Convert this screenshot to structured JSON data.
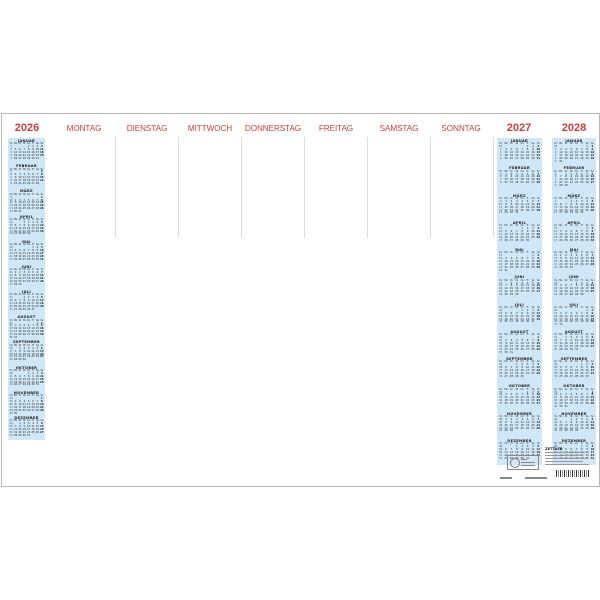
{
  "years": {
    "left": "2026",
    "right1": "2027",
    "right2": "2028"
  },
  "weekdays": [
    "MONTAG",
    "DIENSTAG",
    "MITTWOCH",
    "DONNERSTAG",
    "FREITAG",
    "SAMSTAG",
    "SONNTAG"
  ],
  "months": [
    "JANUAR",
    "FEBRUAR",
    "MÄRZ",
    "APRIL",
    "MAI",
    "JUNI",
    "JULI",
    "AUGUST",
    "SEPTEMBER",
    "OKTOBER",
    "NOVEMBER",
    "DEZEMBER"
  ],
  "mini_weekday_header": [
    "Wo",
    "Mo",
    "Di",
    "Mi",
    "Do",
    "Fr",
    "Sa",
    "So"
  ],
  "footer": {
    "brand": "ZETTLER",
    "fsc_icon": "fsc-tree-icon"
  },
  "colors": {
    "accent_red": "#c8403f",
    "calendar_blue": "#cfe7f6"
  }
}
